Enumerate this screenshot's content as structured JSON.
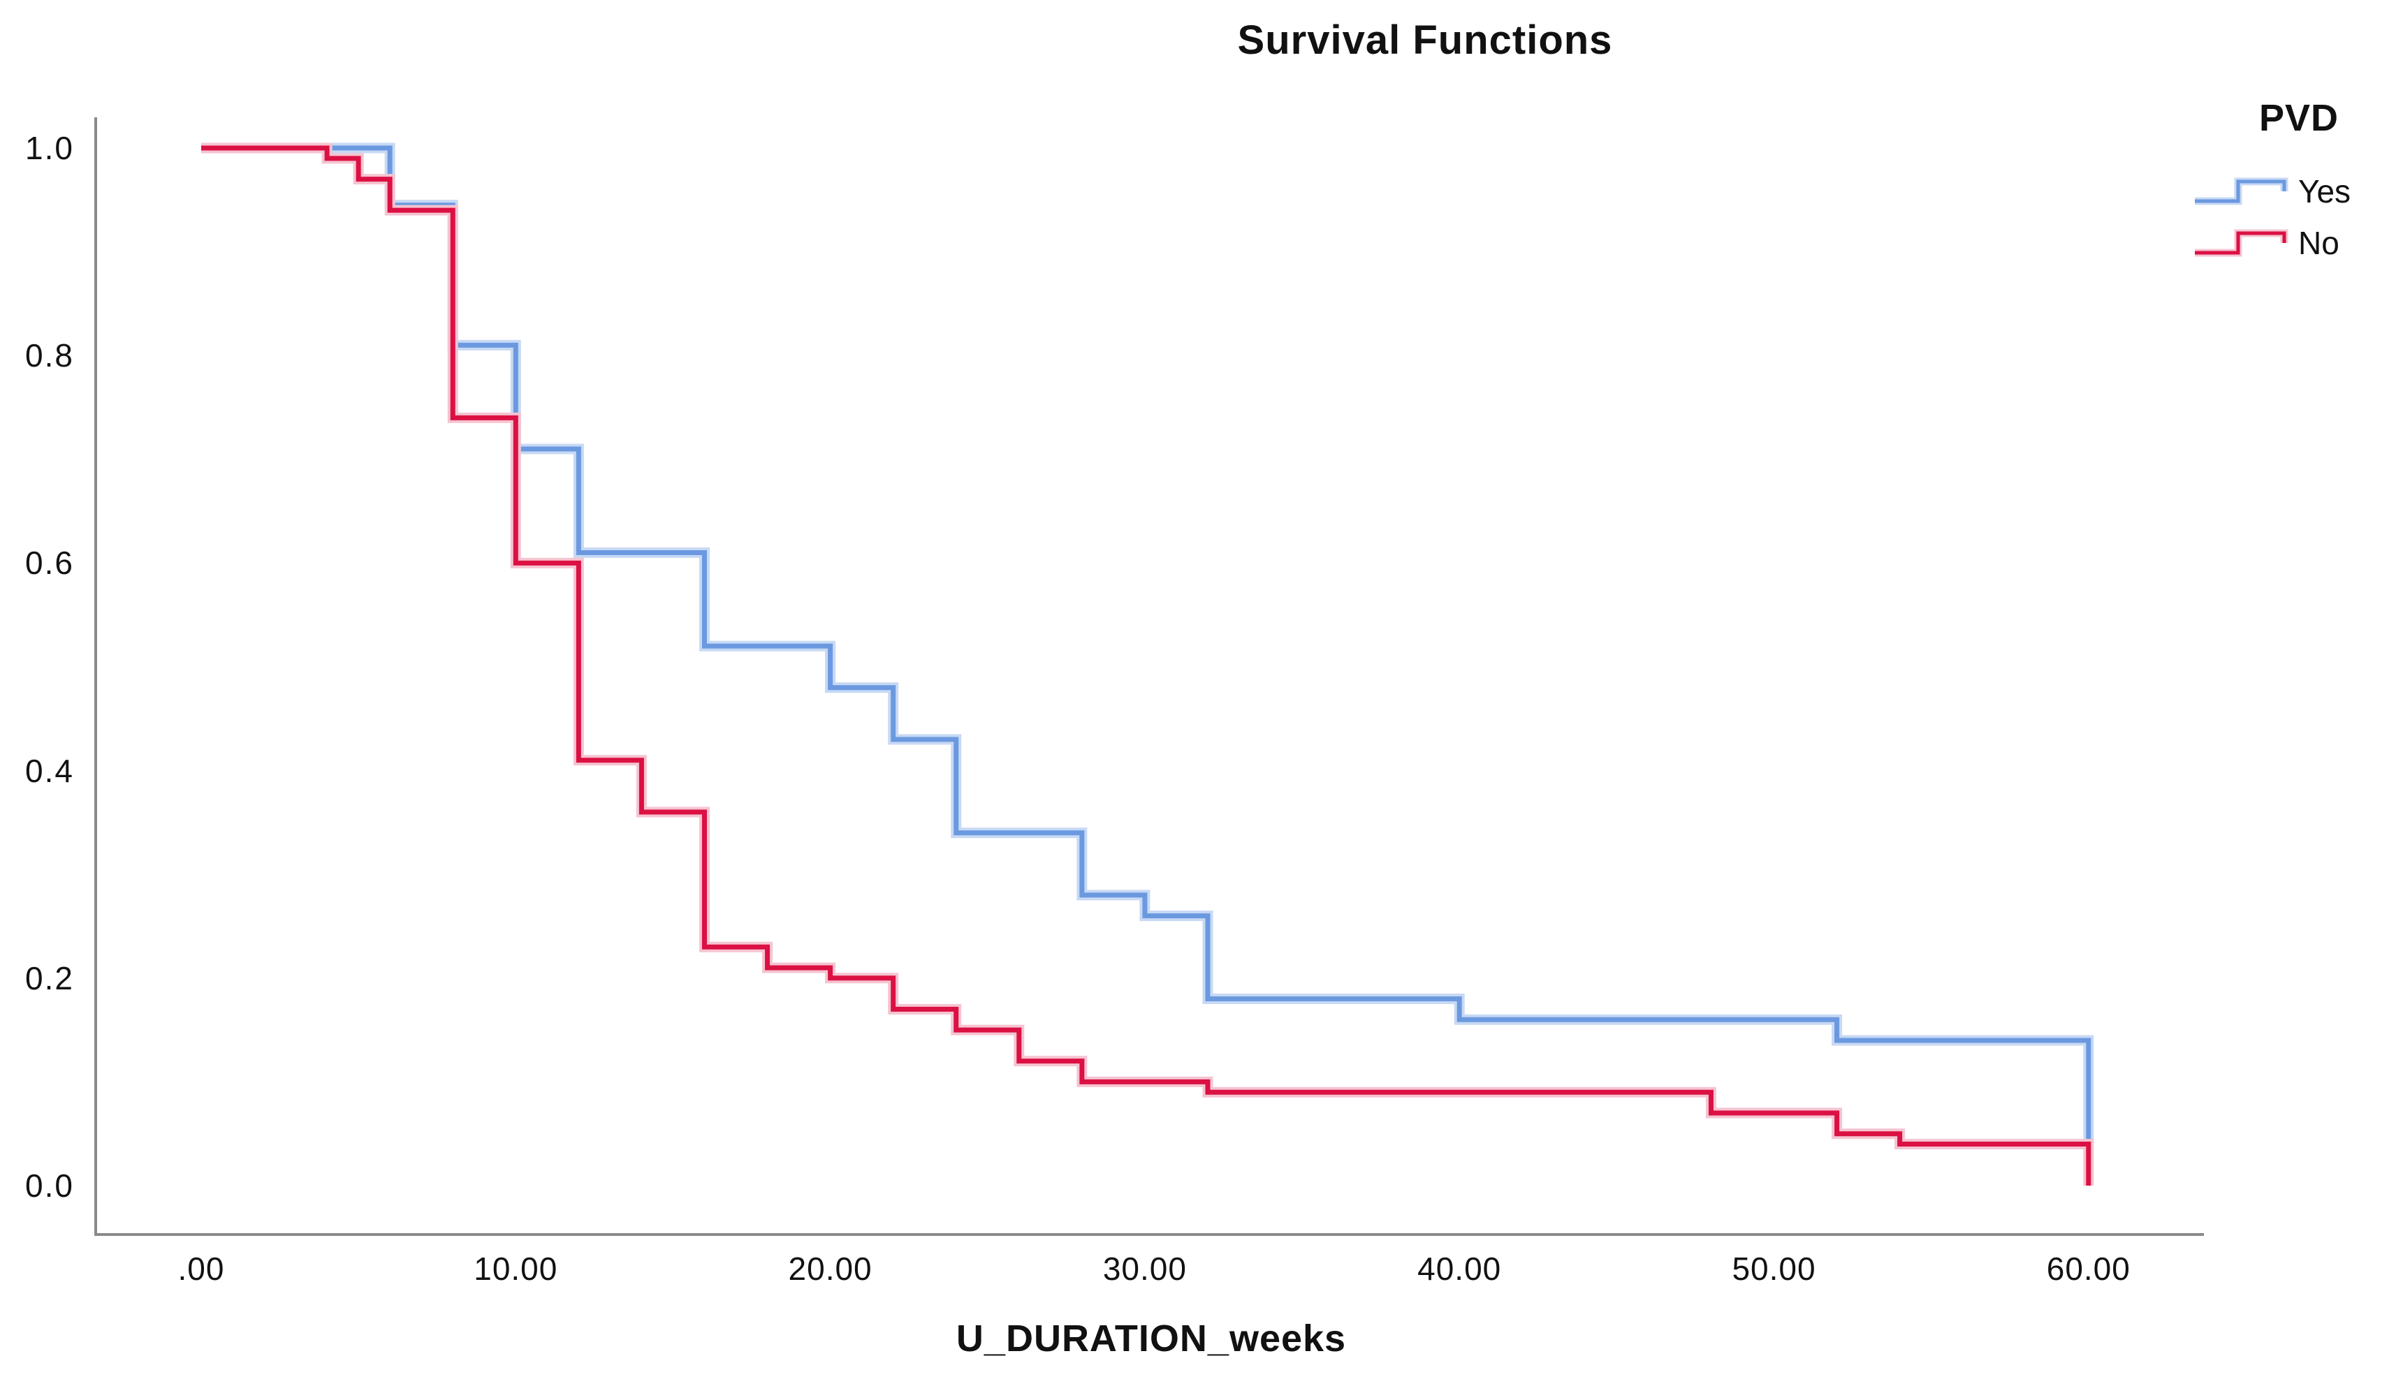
{
  "title": "Survival Functions",
  "legend": {
    "title": "PVD",
    "entries": [
      {
        "label": "Yes",
        "color": "#6B99E0",
        "halo": "#C7D9F4"
      },
      {
        "label": "No",
        "color": "#DB1043",
        "halo": "#F5C4D1"
      }
    ]
  },
  "axes": {
    "x": {
      "label": "U_DURATION_weeks",
      "ticks": [
        {
          "label": ".00",
          "value": 0
        },
        {
          "label": "10.00",
          "value": 10
        },
        {
          "label": "20.00",
          "value": 20
        },
        {
          "label": "30.00",
          "value": 30
        },
        {
          "label": "40.00",
          "value": 40
        },
        {
          "label": "50.00",
          "value": 50
        },
        {
          "label": "60.00",
          "value": 60
        }
      ]
    },
    "y": {
      "ticks": [
        {
          "label": "1.0",
          "value": 1.0
        },
        {
          "label": "0.8",
          "value": 0.8
        },
        {
          "label": "0.6",
          "value": 0.6
        },
        {
          "label": "0.4",
          "value": 0.4
        },
        {
          "label": "0.2",
          "value": 0.2
        },
        {
          "label": "0.0",
          "value": 0.0
        }
      ]
    },
    "axis_color": "#8A8A8A"
  },
  "chart_data": {
    "type": "line",
    "subtype": "kaplan-meier-step",
    "title": "Survival Functions",
    "xlabel": "U_DURATION_weeks",
    "ylabel": "",
    "xlim": [
      -3.3,
      63.6
    ],
    "ylim": [
      0.0,
      1.05
    ],
    "grid": false,
    "legend_position": "top-right",
    "series": [
      {
        "name": "Yes",
        "color": "#6B99E0",
        "halo": "#C7D9F4",
        "points": [
          [
            0,
            1.0
          ],
          [
            6,
            1.0
          ],
          [
            6,
            0.945
          ],
          [
            8,
            0.945
          ],
          [
            8,
            0.81
          ],
          [
            10,
            0.81
          ],
          [
            10,
            0.71
          ],
          [
            12,
            0.71
          ],
          [
            12,
            0.61
          ],
          [
            16,
            0.61
          ],
          [
            16,
            0.52
          ],
          [
            20,
            0.52
          ],
          [
            20,
            0.48
          ],
          [
            22,
            0.48
          ],
          [
            22,
            0.43
          ],
          [
            24,
            0.43
          ],
          [
            24,
            0.34
          ],
          [
            28,
            0.34
          ],
          [
            28,
            0.28
          ],
          [
            30,
            0.28
          ],
          [
            30,
            0.26
          ],
          [
            32,
            0.26
          ],
          [
            32,
            0.18
          ],
          [
            40,
            0.18
          ],
          [
            40,
            0.16
          ],
          [
            52,
            0.16
          ],
          [
            52,
            0.14
          ],
          [
            60,
            0.14
          ],
          [
            60,
            0.04
          ]
        ]
      },
      {
        "name": "No",
        "color": "#DB1043",
        "halo": "#F5C4D1",
        "points": [
          [
            0,
            1.0
          ],
          [
            4,
            1.0
          ],
          [
            4,
            0.99
          ],
          [
            5,
            0.99
          ],
          [
            5,
            0.97
          ],
          [
            6,
            0.97
          ],
          [
            6,
            0.94
          ],
          [
            8,
            0.94
          ],
          [
            8,
            0.74
          ],
          [
            10,
            0.74
          ],
          [
            10,
            0.6
          ],
          [
            12,
            0.6
          ],
          [
            12,
            0.41
          ],
          [
            14,
            0.41
          ],
          [
            14,
            0.36
          ],
          [
            16,
            0.36
          ],
          [
            16,
            0.23
          ],
          [
            18,
            0.23
          ],
          [
            18,
            0.21
          ],
          [
            20,
            0.21
          ],
          [
            20,
            0.2
          ],
          [
            22,
            0.2
          ],
          [
            22,
            0.17
          ],
          [
            24,
            0.17
          ],
          [
            24,
            0.15
          ],
          [
            26,
            0.15
          ],
          [
            26,
            0.12
          ],
          [
            28,
            0.12
          ],
          [
            28,
            0.1
          ],
          [
            32,
            0.1
          ],
          [
            32,
            0.09
          ],
          [
            48,
            0.09
          ],
          [
            48,
            0.07
          ],
          [
            52,
            0.07
          ],
          [
            52,
            0.05
          ],
          [
            54,
            0.05
          ],
          [
            54,
            0.04
          ],
          [
            60,
            0.04
          ],
          [
            60,
            0.0
          ]
        ]
      }
    ]
  }
}
